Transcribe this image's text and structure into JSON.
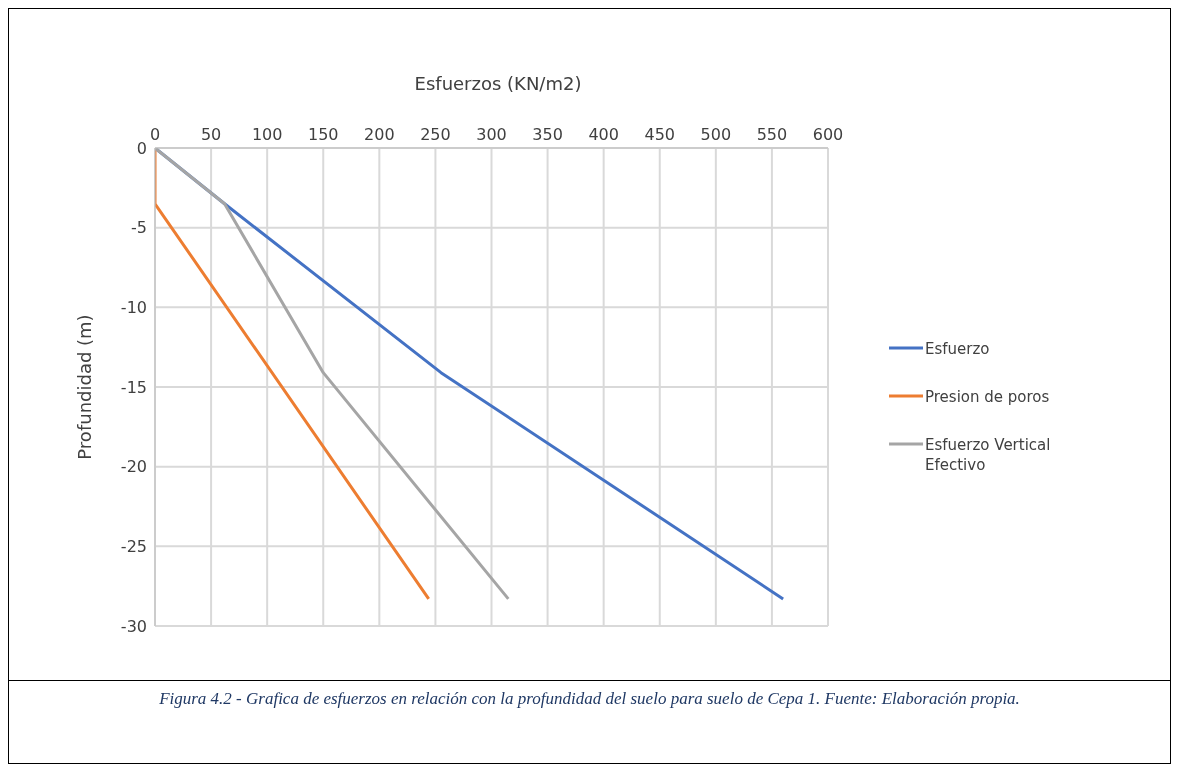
{
  "chart_data": {
    "type": "line",
    "xlabel": "Esfuerzos (KN/m2)",
    "ylabel": "Profundidad (m)",
    "series": [
      {
        "name": "Esfuerzo",
        "color": "#4472c4",
        "x": [
          0,
          62,
          255,
          560
        ],
        "values": [
          0,
          -3.5,
          -14.1,
          -28.3
        ]
      },
      {
        "name": "Presion de poros",
        "color": "#ed7d31",
        "x": [
          0,
          0,
          244
        ],
        "values": [
          0,
          -3.5,
          -28.3
        ]
      },
      {
        "name": "Esfuerzo Vertical Efectivo",
        "color": "#a5a5a5",
        "x": [
          0,
          62,
          150,
          315
        ],
        "values": [
          0,
          -3.5,
          -14.1,
          -28.3
        ]
      }
    ],
    "xlim": [
      0,
      600
    ],
    "xticks": [
      0,
      50,
      100,
      150,
      200,
      250,
      300,
      350,
      400,
      450,
      500,
      550,
      600
    ],
    "ylim": [
      -30,
      0
    ],
    "yticks": [
      -30,
      -25,
      -20,
      -15,
      -10,
      -5,
      0
    ],
    "grid": true,
    "legend": "right",
    "marker": "none",
    "line_style": "solid",
    "annotations": [
      "Figura 4.2 - Grafica de esfuerzos en relación con la profundidad del suelo para suelo de Cepa 1. Fuente: Elaboración propia."
    ]
  }
}
